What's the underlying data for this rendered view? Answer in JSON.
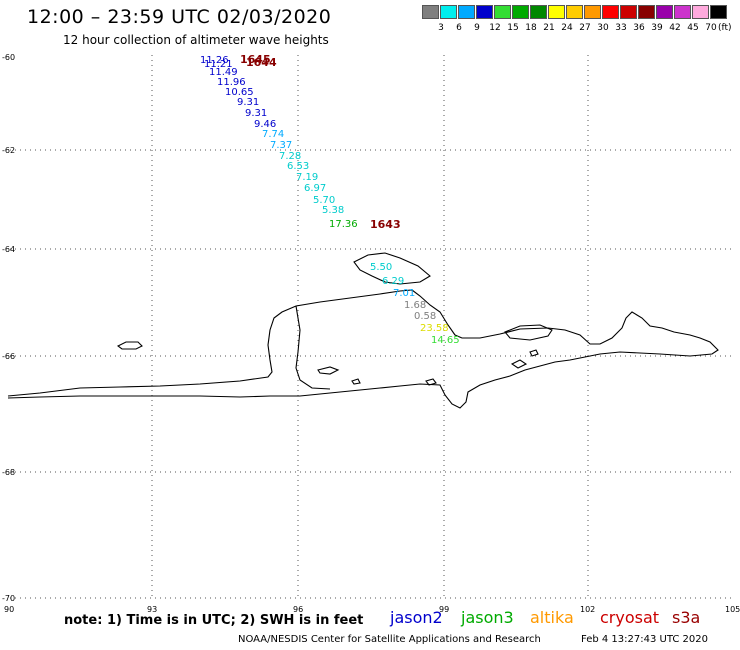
{
  "header": {
    "title": "12:00 – 23:59 UTC 02/03/2020",
    "subtitle": "12 hour collection of altimeter wave heights"
  },
  "legend": {
    "unit": "(ft)",
    "bins": [
      {
        "label": "3",
        "color": "#7f7f7f"
      },
      {
        "label": "6",
        "color": "#00eeee"
      },
      {
        "label": "9",
        "color": "#00aaff"
      },
      {
        "label": "12",
        "color": "#0000cc"
      },
      {
        "label": "15",
        "color": "#33dd33"
      },
      {
        "label": "18",
        "color": "#00aa00"
      },
      {
        "label": "21",
        "color": "#008800"
      },
      {
        "label": "24",
        "color": "#ffff00"
      },
      {
        "label": "27",
        "color": "#ffcc00"
      },
      {
        "label": "30",
        "color": "#ff9900"
      },
      {
        "label": "33",
        "color": "#ff0000"
      },
      {
        "label": "36",
        "color": "#cc0000"
      },
      {
        "label": "39",
        "color": "#880000"
      },
      {
        "label": "42",
        "color": "#9900aa"
      },
      {
        "label": "45",
        "color": "#cc33cc"
      },
      {
        "label": "70",
        "color": "#ffaadd"
      },
      {
        "label": "",
        "color": "#000000"
      }
    ]
  },
  "map": {
    "lat_labels": [
      "-60",
      "-62",
      "-64",
      "-66",
      "-68",
      "-70"
    ],
    "lon_labels": [
      "90",
      "93",
      "96",
      "99",
      "102",
      "105"
    ],
    "observations": [
      {
        "text": "11.26",
        "color": "#0000cc"
      },
      {
        "text": "11.21",
        "color": "#0000cc"
      },
      {
        "text": "11.49",
        "color": "#0000cc"
      },
      {
        "text": "11.96",
        "color": "#0000cc"
      },
      {
        "text": "10.65",
        "color": "#0000cc"
      },
      {
        "text": "9.31",
        "color": "#0000cc"
      },
      {
        "text": "9.31",
        "color": "#0000cc"
      },
      {
        "text": "9.46",
        "color": "#0000cc"
      },
      {
        "text": "7.74",
        "color": "#00aaff"
      },
      {
        "text": "7.37",
        "color": "#00aaff"
      },
      {
        "text": "7.28",
        "color": "#00cccc"
      },
      {
        "text": "6.53",
        "color": "#00cccc"
      },
      {
        "text": "7.19",
        "color": "#00cccc"
      },
      {
        "text": "6.97",
        "color": "#00cccc"
      },
      {
        "text": "5.70",
        "color": "#00cccc"
      },
      {
        "text": "5.38",
        "color": "#00cccc"
      },
      {
        "text": "17.36",
        "color": "#00aa00"
      },
      {
        "text": "5.50",
        "color": "#00cccc"
      },
      {
        "text": "6.29",
        "color": "#00cccc"
      },
      {
        "text": "7.01",
        "color": "#00aaff"
      },
      {
        "text": "1.68",
        "color": "#7f7f7f"
      },
      {
        "text": "0.58",
        "color": "#7f7f7f"
      },
      {
        "text": "23.58",
        "color": "#dddd00"
      },
      {
        "text": "14.65",
        "color": "#33dd33"
      }
    ],
    "time_marks": [
      {
        "text": "1645",
        "color": "#880000"
      },
      {
        "text": "1644",
        "color": "#880000"
      },
      {
        "text": "1643",
        "color": "#880000"
      }
    ]
  },
  "footer": {
    "note": "note: 1) Time is in UTC; 2) SWH is in feet",
    "satellites": [
      {
        "name": "jason2",
        "color": "#0000cc"
      },
      {
        "name": "jason3",
        "color": "#00aa00"
      },
      {
        "name": "altika",
        "color": "#ff9900"
      },
      {
        "name": "cryosat",
        "color": "#cc0000"
      },
      {
        "name": "s3a",
        "color": "#990000"
      }
    ],
    "credit": "NOAA/NESDIS Center for Satellite Applications and Research",
    "timestamp": "Feb  4 13:27:43 UTC 2020"
  }
}
